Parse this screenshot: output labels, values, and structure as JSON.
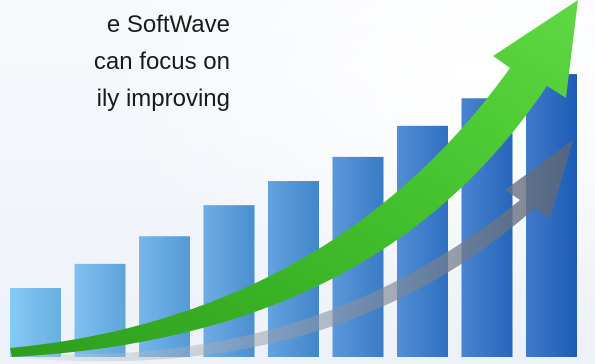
{
  "caption": {
    "lines": [
      "e SoftWave",
      "can focus on",
      "ily improving"
    ]
  },
  "chart_data": {
    "type": "bar",
    "trend": "upward arrow",
    "values": [
      1,
      1.35,
      1.75,
      2.2,
      2.55,
      2.9,
      3.35,
      3.75,
      4.1
    ],
    "colors": {
      "bar_light": "#73c1f2",
      "bar_dark": "#1f62c0",
      "arrow": "#44c22d",
      "shadow": "#7d8897"
    }
  }
}
